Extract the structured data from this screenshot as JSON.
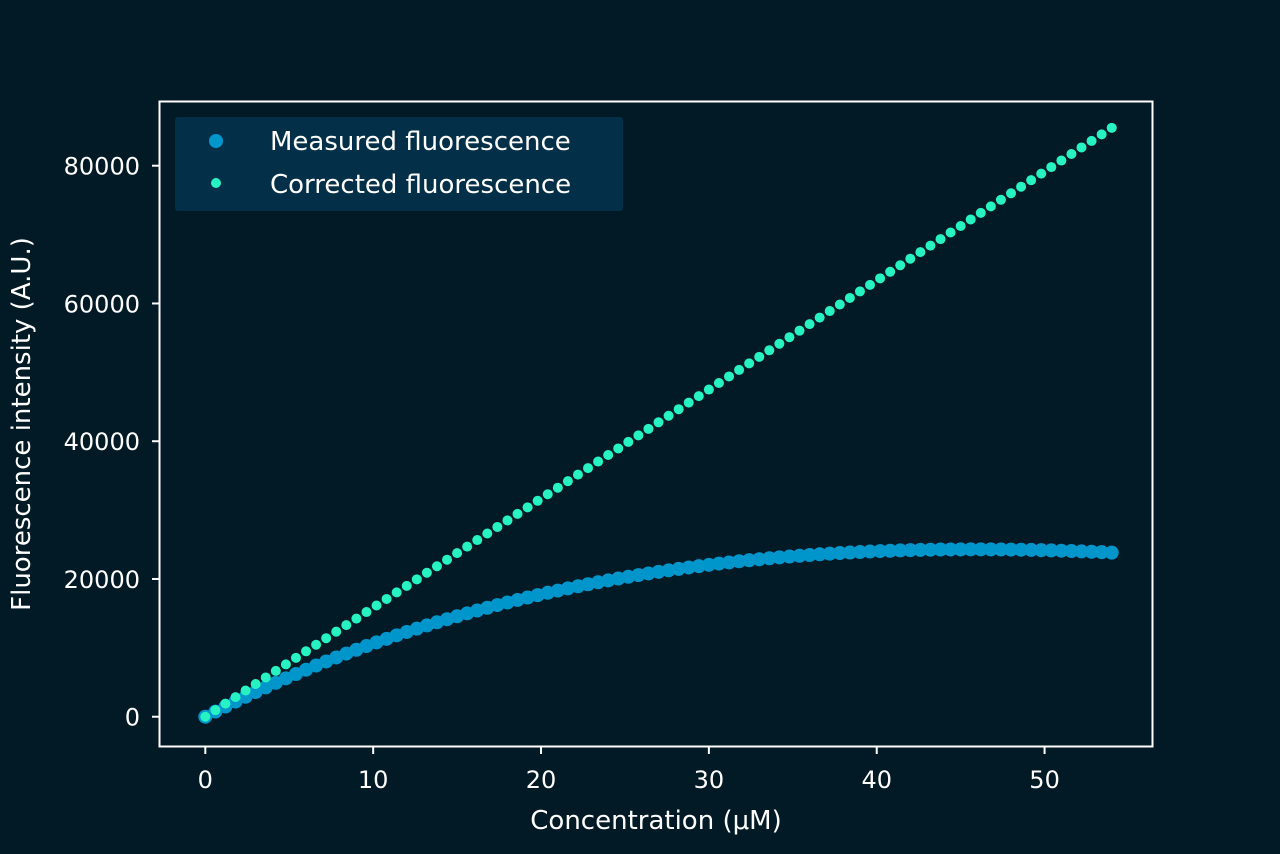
{
  "colors": {
    "background": "#011a26",
    "axes": "#ffffff",
    "legend_background": "#033048",
    "measured": "#0096cc",
    "corrected": "#27f2c2"
  },
  "chart_data": {
    "type": "scatter",
    "title": "",
    "xlabel": "Concentration (μM)",
    "ylabel": "Fluorescence intensity (A.U.)",
    "xlim": [
      -2.7,
      56.4
    ],
    "ylim": [
      -4250,
      89250
    ],
    "xticks": [
      0,
      10,
      20,
      30,
      40,
      50
    ],
    "yticks": [
      0,
      20000,
      40000,
      60000,
      80000
    ],
    "grid": false,
    "legend_position": "top-left",
    "x_start": 0,
    "x_step": 0.6,
    "point_count": 91,
    "series": [
      {
        "name": "Measured fluorescence",
        "color": "#0096cc",
        "marker_size": "large",
        "values": [
          0,
          747,
          1479,
          2197,
          2899,
          3588,
          4262,
          4923,
          5570,
          6203,
          6823,
          7429,
          8022,
          8602,
          9169,
          9723,
          10265,
          10794,
          11310,
          11814,
          12306,
          12787,
          13255,
          13711,
          14156,
          14589,
          15011,
          15422,
          15821,
          16210,
          16587,
          16954,
          17310,
          17656,
          17991,
          18316,
          18631,
          18936,
          19232,
          19517,
          19793,
          20060,
          20317,
          20565,
          20804,
          21034,
          21255,
          21467,
          21671,
          21866,
          22053,
          22231,
          22401,
          22564,
          22718,
          22864,
          23003,
          23134,
          23257,
          23373,
          23482,
          23583,
          23678,
          23765,
          23845,
          23918,
          23985,
          24045,
          24098,
          24145,
          24186,
          24220,
          24249,
          24271,
          24287,
          24298,
          24303,
          24302,
          24296,
          24285,
          24268,
          24246,
          24218,
          24186,
          24149,
          24106,
          24059,
          24008,
          23951,
          23890,
          23825
        ]
      },
      {
        "name": "Corrected fluorescence",
        "color": "#27f2c2",
        "marker_size": "small",
        "values": [
          0,
          950,
          1900,
          2850,
          3800,
          4750,
          5700,
          6650,
          7600,
          8550,
          9500,
          10450,
          11400,
          12350,
          13300,
          14250,
          15200,
          16150,
          17100,
          18050,
          19000,
          19950,
          20900,
          21850,
          22800,
          23750,
          24700,
          25650,
          26600,
          27550,
          28500,
          29450,
          30400,
          31350,
          32300,
          33250,
          34200,
          35150,
          36100,
          37050,
          38000,
          38950,
          39900,
          40850,
          41800,
          42750,
          43700,
          44650,
          45600,
          46550,
          47500,
          48450,
          49400,
          50350,
          51300,
          52250,
          53200,
          54150,
          55100,
          56050,
          57000,
          57950,
          58900,
          59850,
          60800,
          61750,
          62700,
          63650,
          64600,
          65550,
          66500,
          67450,
          68400,
          69350,
          70300,
          71250,
          72200,
          73150,
          74100,
          75050,
          76000,
          76950,
          77900,
          78850,
          79800,
          80750,
          81700,
          82650,
          83600,
          84550,
          85500
        ]
      }
    ]
  }
}
